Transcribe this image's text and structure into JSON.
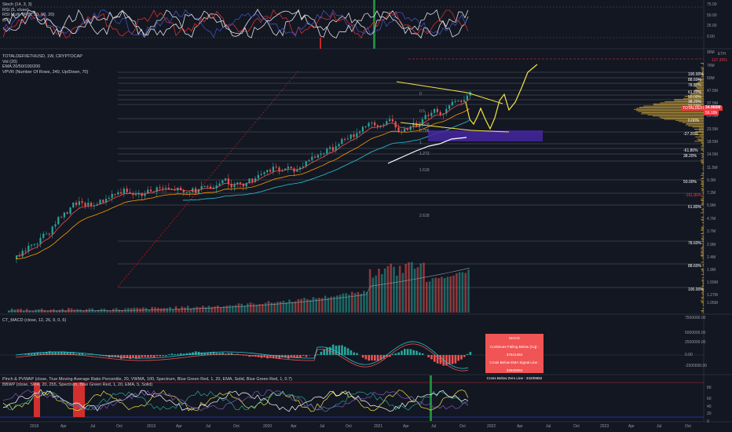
{
  "panes": {
    "oscillators": {
      "legend": [
        "Stoch (14, 3, 3)",
        "RSI (5, close)",
        "RSI Multi TF (5, 50, 50, 20)",
        "(14)"
      ],
      "axis": [
        "75.00",
        "50.00",
        "25.00",
        "0.00"
      ]
    },
    "main": {
      "symbol": "TOTALDEFI/ETHUSD, 1W, CRYPTOCAP",
      "legend": [
        "Vol (20)",
        "EMA 20/50/100/200",
        "VPVR (Number Of Rows, 240, Up/Down, 70)"
      ],
      "axis_unit": "ETH",
      "axis": [
        "96M",
        "76M",
        "60M",
        "47.5M",
        "37.5M",
        "29.5M",
        "23.5M",
        "18.5M",
        "14.5M",
        "11.5M",
        "9.3M",
        "7.2M",
        "5.9M",
        "4.7M",
        "3.7M",
        "2.9M",
        "2.4M",
        "1.9M",
        "1.55M",
        "1.27M",
        "1.05M"
      ],
      "price_tag": "34.966M",
      "price_tag_sub": "56.18h",
      "symbol_tag": "TOTALDEFI/ETHUSD",
      "fib_right": [
        {
          "label": "127.20%",
          "color": "#f23645"
        },
        {
          "label": "100.00%",
          "color": "#ffffff"
        },
        {
          "label": "88.60%",
          "color": "#ffffff"
        },
        {
          "label": "78.60%",
          "color": "#ffffff"
        },
        {
          "label": "61.80%",
          "color": "#ffffff"
        },
        {
          "label": "50.00%",
          "color": "#ffffff"
        },
        {
          "label": "38.20%",
          "color": "#ffffff"
        },
        {
          "label": "23.60%",
          "color": "#ffffff"
        },
        {
          "label": "0.00%",
          "color": "#ffffff"
        },
        {
          "label": "-27.20%",
          "color": "#ffffff"
        },
        {
          "label": "-61.80%",
          "color": "#ffffff"
        },
        {
          "label": "38.20%",
          "color": "#ffffff"
        },
        {
          "label": "50.00%",
          "color": "#ffffff"
        },
        {
          "label": "-161.80%",
          "color": "#f23645"
        },
        {
          "label": "61.80%",
          "color": "#ffffff"
        },
        {
          "label": "78.60%",
          "color": "#ffffff"
        },
        {
          "label": "88.60%",
          "color": "#ffffff"
        },
        {
          "label": "100.00%",
          "color": "#ffffff"
        }
      ],
      "fib_mid": [
        "0",
        "0.5",
        "0.618",
        "0.786",
        "1",
        "1.272",
        "1.618",
        "2.618"
      ]
    },
    "macd": {
      "legend": "CT_MACD (close, 12, 26, 9, 0, 6)",
      "axis": [
        "7500000.00",
        "5000000.00",
        "2500000.00",
        "0.00",
        "-2500000.00"
      ],
      "box": {
        "title": "MACD",
        "lines": [
          "Continues Falling Below (Cq) : 37541484",
          "Cross Below EMA Signal Line : 33940064",
          "Cross Below Zero Line : 34209682"
        ]
      }
    },
    "bbwp": {
      "legend": [
        "Pinch & PVWAP (close, True Moving Average Ratio Percentile, 20, VWMA, 100, Spectrum, Blue Green Red, 1, 20, EMA, Solid, Blue Green Red, 1, 0.7)",
        "BBWP (close, SMA, 20, 255, Spectrum, Blue Green Red, 1, 20, EMA, 5, Solid)"
      ],
      "axis": [
        "80",
        "60",
        "40",
        "20",
        "0"
      ]
    }
  },
  "time_axis": [
    "2018",
    "Apr",
    "Jul",
    "Oct",
    "2019",
    "Apr",
    "Jul",
    "Oct",
    "2020",
    "Apr",
    "Jul",
    "Oct",
    "2021",
    "Apr",
    "Jul",
    "Oct",
    "2022",
    "Apr",
    "Jul",
    "Oct",
    "2023",
    "Apr",
    "Jul",
    "Oct"
  ],
  "colors": {
    "background": "#131722",
    "up": "#26a69a",
    "down": "#ef5350",
    "projection": "#f5e642",
    "fib_red": "#f23645"
  }
}
